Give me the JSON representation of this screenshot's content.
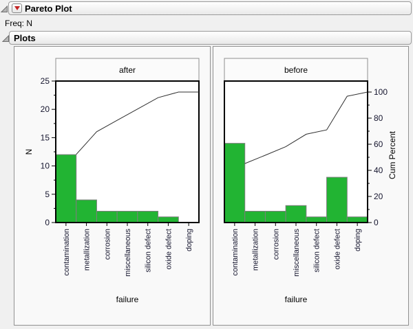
{
  "window": {
    "title": "Pareto Plot",
    "freq_label": "Freq: N",
    "plots_title": "Plots"
  },
  "icons": {
    "disclosure_open": "open-disclosure-triangle",
    "red_triangle_menu": "red-triangle-menu"
  },
  "colors": {
    "window_bg": "#f0f0f0",
    "panel_bg": "#f9f9f9",
    "panel_border": "#909090",
    "bar_fill": "#22b433",
    "bar_stroke": "#7e7e7e",
    "cum_line": "#2e2e2e",
    "plot_frame": "#000000",
    "header_box_bg": "#fbfbfb",
    "header_box_border": "#8f8f8f",
    "red_triangle": "#c32424"
  },
  "chart_data": [
    {
      "type": "bar",
      "panel_title": "after",
      "categories": [
        "contamination",
        "metallization",
        "corrosion",
        "miscellaneous",
        "silicon defect",
        "oxide defect",
        "doping"
      ],
      "values": [
        12,
        4,
        2,
        2,
        2,
        1,
        0
      ],
      "cum_percent": [
        52.2,
        69.6,
        78.3,
        87.0,
        95.7,
        100,
        100
      ],
      "xlabel": "failure",
      "n_axis": {
        "label": "N",
        "min": 0,
        "max": 25,
        "major": 5,
        "minor": 2.5,
        "visible": true
      },
      "pct_axis": {
        "label": "Cum Percent",
        "min": 0,
        "max": 100,
        "major": 20,
        "minor": 10,
        "visible": false
      }
    },
    {
      "type": "bar",
      "panel_title": "before",
      "categories": [
        "contamination",
        "metallization",
        "corrosion",
        "miscellaneous",
        "silicon defect",
        "oxide defect",
        "doping"
      ],
      "values": [
        14,
        2,
        2,
        3,
        1,
        8,
        1
      ],
      "cum_percent": [
        45.2,
        51.6,
        58.1,
        67.7,
        71.0,
        96.8,
        100
      ],
      "xlabel": "failure",
      "n_axis": {
        "label": "N",
        "min": 0,
        "max": 25,
        "major": 5,
        "minor": 2.5,
        "visible": false
      },
      "pct_axis": {
        "label": "Cum Percent",
        "min": 0,
        "max": 100,
        "major": 20,
        "minor": 10,
        "visible": true
      }
    }
  ]
}
